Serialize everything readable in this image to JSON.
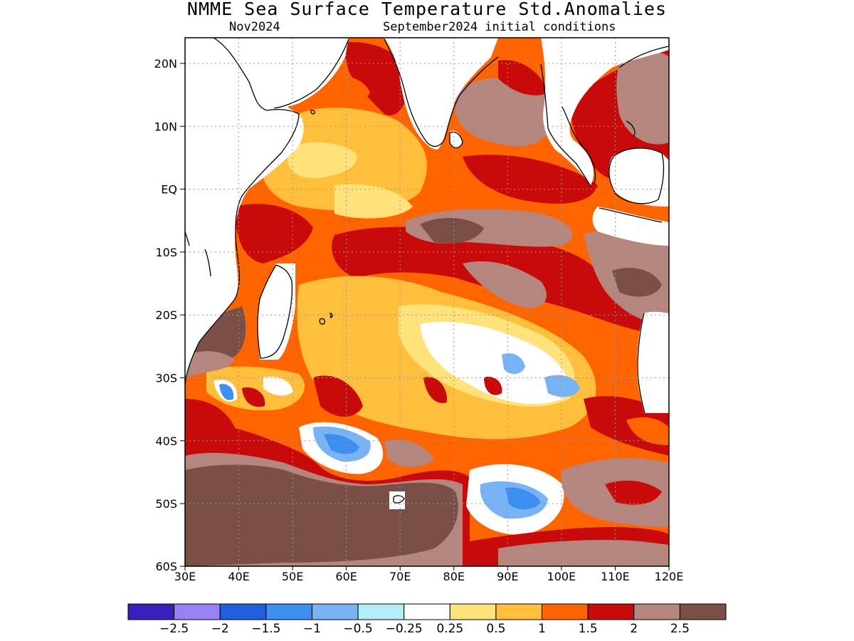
{
  "title": "NMME Sea Surface Temperature Std.Anomalies",
  "subtitle_left": "Nov2024",
  "subtitle_right": "September2024 initial conditions",
  "lat_ticks": [
    "20N",
    "10N",
    "EQ",
    "10S",
    "20S",
    "30S",
    "40S",
    "50S",
    "60S"
  ],
  "lon_ticks": [
    "30E",
    "40E",
    "50E",
    "60E",
    "70E",
    "80E",
    "90E",
    "100E",
    "110E",
    "120E"
  ],
  "legend": {
    "colors": [
      "#3a1fbf",
      "#9a80f5",
      "#2060e0",
      "#3c8ff0",
      "#78b4f5",
      "#b4eef8",
      "#ffffff",
      "#ffe27a",
      "#ffbf3c",
      "#ff6400",
      "#c80a0a",
      "#b4867e",
      "#7a4f45"
    ],
    "labels": [
      "-2.5",
      "-2",
      "-1.5",
      "-1",
      "-0.5",
      "-0.25",
      "0.25",
      "0.5",
      "1",
      "1.5",
      "2",
      "2.5"
    ]
  },
  "colors": {
    "land": "#ffffff",
    "coast": "#000000",
    "grid": "#999999"
  }
}
